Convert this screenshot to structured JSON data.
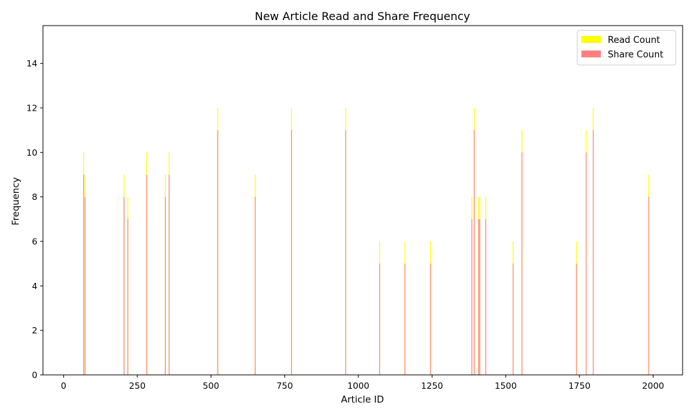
{
  "chart_data": {
    "type": "bar",
    "title": "New Article Read and Share Frequency",
    "xlabel": "Article ID",
    "ylabel": "Frequency",
    "xlim": [
      -70,
      2100
    ],
    "ylim": [
      0,
      15.7
    ],
    "xticks": [
      0,
      250,
      500,
      750,
      1000,
      1250,
      1500,
      1750,
      2000
    ],
    "yticks": [
      0,
      2,
      4,
      6,
      8,
      10,
      12,
      14
    ],
    "legend_position": "top-right",
    "x": [
      68,
      73,
      205,
      218,
      282,
      345,
      358,
      523,
      650,
      773,
      957,
      1072,
      1158,
      1245,
      1385,
      1393,
      1408,
      1412,
      1432,
      1525,
      1555,
      1740,
      1773,
      1797,
      1985
    ],
    "series": [
      {
        "name": "Read Count",
        "color": "#ffff00",
        "values": [
          10,
          9,
          9,
          8,
          10,
          9,
          10,
          12,
          9,
          12,
          12,
          6,
          6,
          6,
          8,
          12,
          8,
          8,
          8,
          6,
          11,
          6,
          11,
          12,
          9
        ]
      },
      {
        "name": "Share Count",
        "color": "#ff8080",
        "values": [
          9,
          8,
          8,
          7,
          9,
          8,
          9,
          11,
          8,
          11,
          11,
          5,
          5,
          5,
          7,
          11,
          7,
          7,
          7,
          5,
          10,
          5,
          10,
          11,
          8
        ]
      }
    ]
  }
}
